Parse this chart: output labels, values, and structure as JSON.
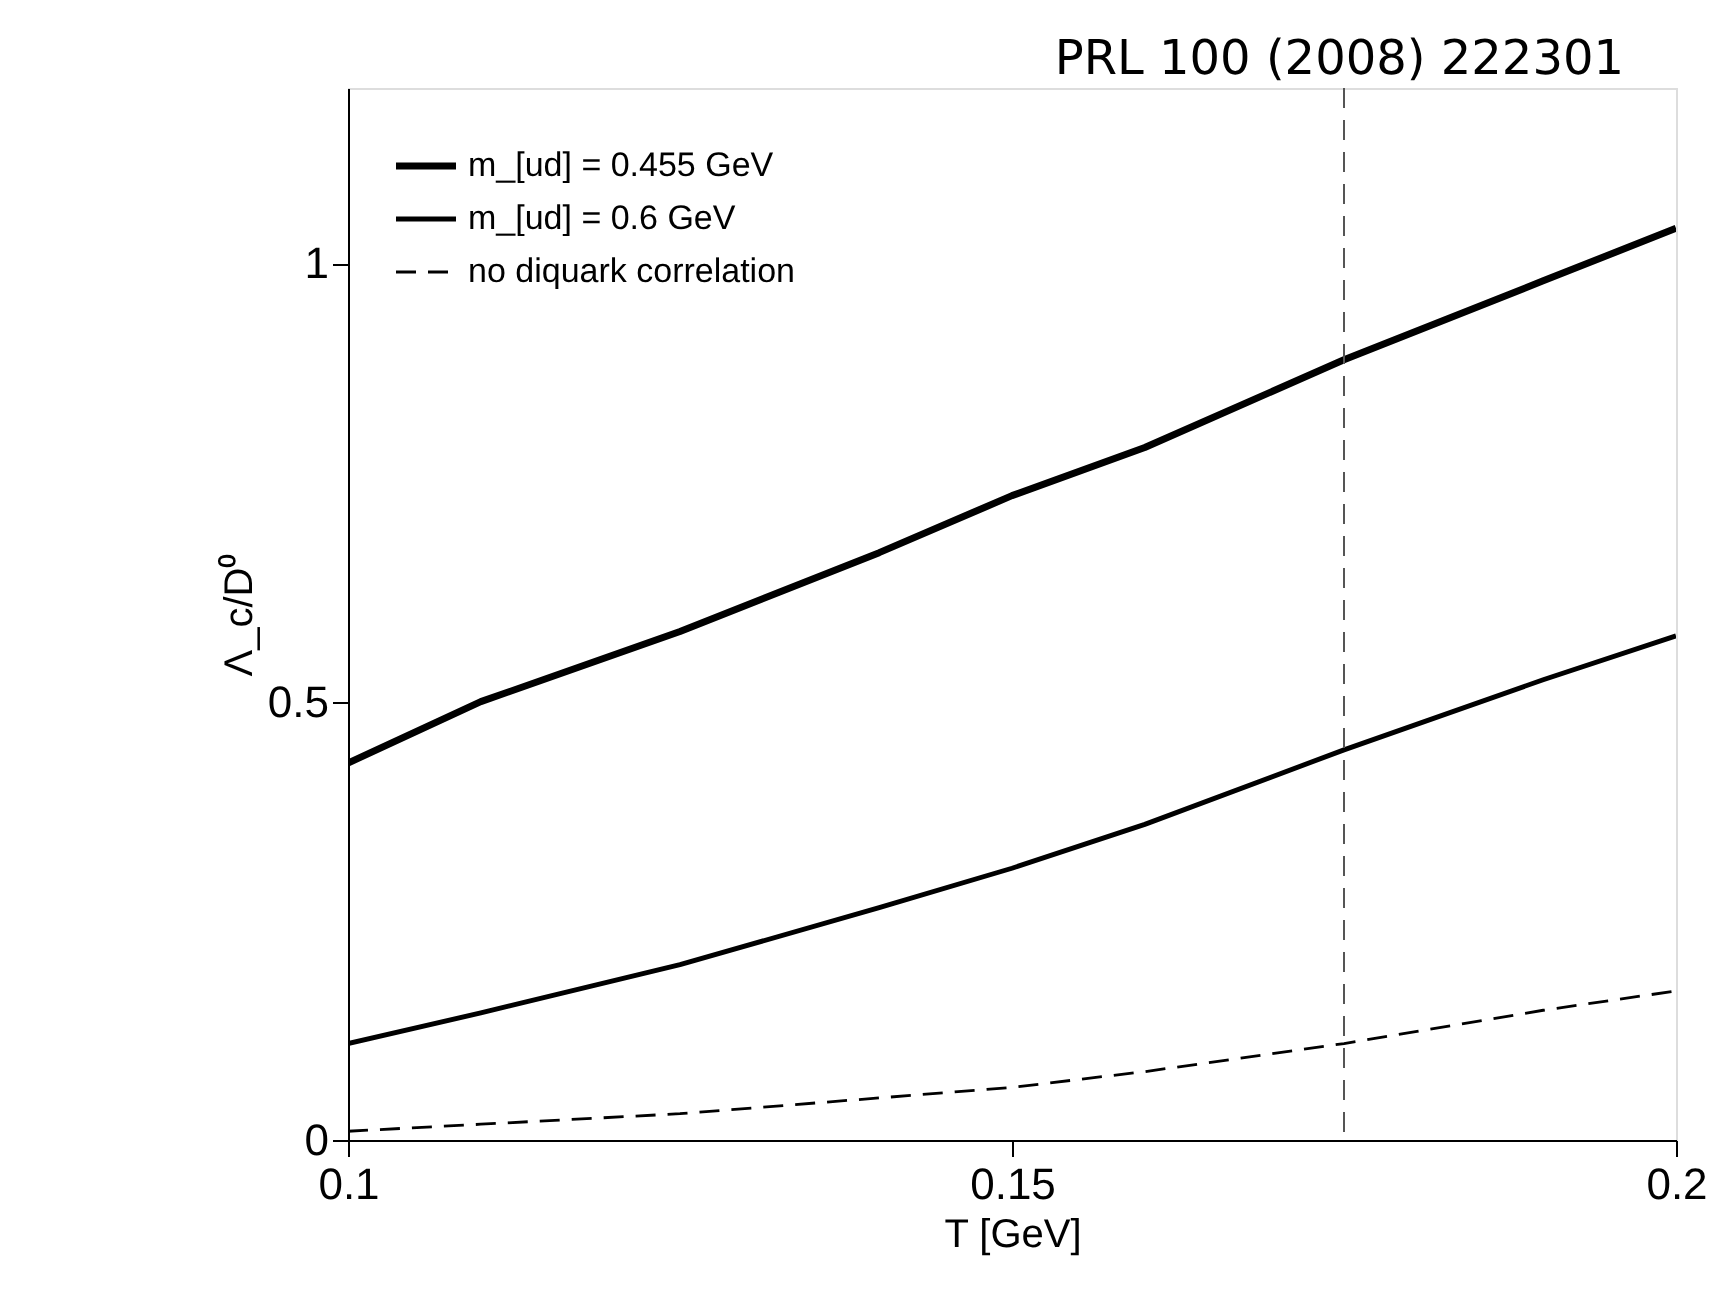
{
  "chart_data": {
    "type": "line",
    "xlabel": "T [GeV]",
    "ylabel": "Λ_c/D⁰",
    "annotations": [
      "PRL 100  (2008) 222301"
    ],
    "x": [
      0.1,
      0.11,
      0.125,
      0.14,
      0.15,
      0.16,
      0.175,
      0.19,
      0.2
    ],
    "series": [
      {
        "name": "m_[ud] = 0.455 GeV",
        "color": "#000000",
        "line_style": "solid",
        "values": [
          0.43,
          0.5,
          0.58,
          0.67,
          0.735,
          0.79,
          0.89,
          0.98,
          1.04
        ]
      },
      {
        "name": "m_[ud] = 0.6 GeV",
        "color": "#000000",
        "line_style": "solid",
        "values": [
          0.11,
          0.145,
          0.2,
          0.265,
          0.31,
          0.36,
          0.445,
          0.525,
          0.575
        ]
      },
      {
        "name": "no diquark correlation",
        "color": "#000000",
        "line_style": "dashed",
        "values": [
          0.01,
          0.018,
          0.03,
          0.048,
          0.06,
          0.078,
          0.11,
          0.148,
          0.17
        ]
      }
    ],
    "xlim": [
      0.1,
      0.2
    ],
    "xticks": [
      0.1,
      0.15,
      0.2
    ],
    "ylim": [
      0,
      1.2
    ],
    "yticks": [
      0,
      0.5,
      1
    ],
    "ref_lines": [
      {
        "axis": "x",
        "value": 0.175,
        "color": "#555555",
        "line_style": "dashed"
      }
    ],
    "legend": "top left",
    "grid": false
  }
}
